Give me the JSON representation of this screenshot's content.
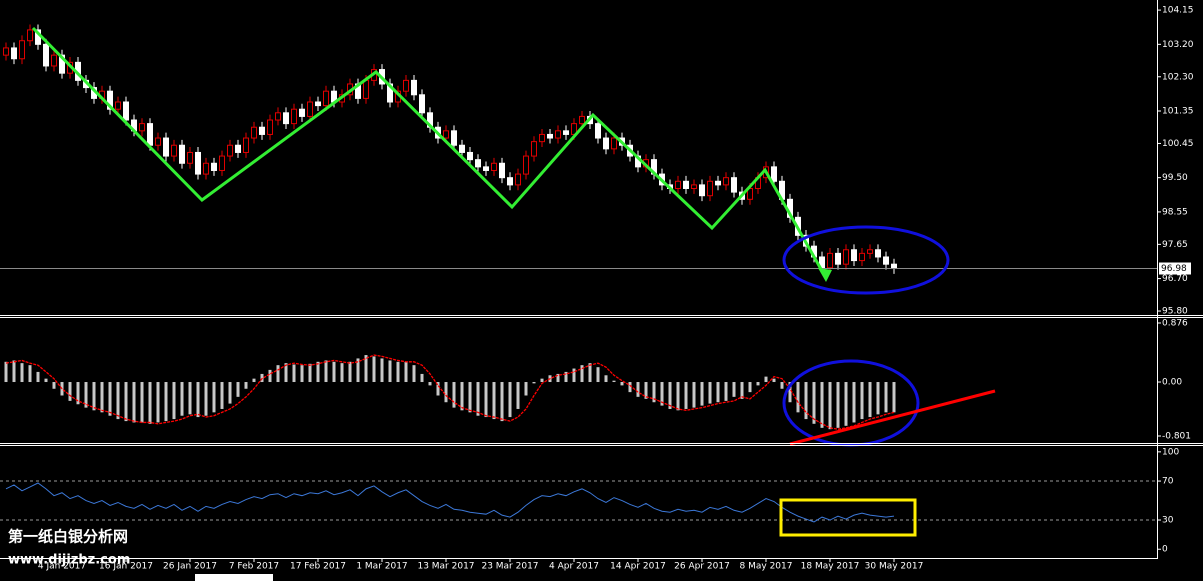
{
  "chart_data": [
    {
      "type": "candlestick",
      "up_color": "#e00000",
      "down_color": "#ffffff",
      "current_line_color": "#8a8a8a",
      "ylim": [
        95.69,
        104.43
      ],
      "yticks": [
        104.15,
        {
          "value": 103.2,
          "label": "103.20"
        },
        {
          "value": 102.3,
          "label": "102.30"
        },
        101.35,
        100.45,
        {
          "value": 99.5,
          "label": "99.50"
        },
        98.55,
        97.65,
        {
          "value": 96.7,
          "label": "96.70"
        },
        {
          "value": 95.8,
          "label": "95.80"
        }
      ],
      "categories": [
        null,
        null,
        null,
        null,
        null,
        null,
        null,
        "4 Jan 2017",
        null,
        null,
        null,
        null,
        null,
        null,
        null,
        "16 Jan 2017",
        null,
        null,
        null,
        null,
        null,
        null,
        null,
        "26 Jan 2017",
        null,
        null,
        null,
        null,
        null,
        null,
        null,
        "7 Feb 2017",
        null,
        null,
        null,
        null,
        null,
        null,
        null,
        "17 Feb 2017",
        null,
        null,
        null,
        null,
        null,
        null,
        null,
        "1 Mar 2017",
        null,
        null,
        null,
        null,
        null,
        null,
        null,
        "13 Mar 2017",
        null,
        null,
        null,
        null,
        null,
        null,
        null,
        "23 Mar 2017",
        null,
        null,
        null,
        null,
        null,
        null,
        null,
        "4 Apr 2017",
        null,
        null,
        null,
        null,
        null,
        null,
        null,
        "14 Apr 2017",
        null,
        null,
        null,
        null,
        null,
        null,
        null,
        "26 Apr 2017",
        null,
        null,
        null,
        null,
        null,
        null,
        null,
        "8 May 2017",
        null,
        null,
        null,
        null,
        null,
        null,
        null,
        "18 May 2017",
        null,
        null,
        null,
        null,
        null,
        null,
        null,
        "30 May 2017"
      ],
      "ohlc": [
        [
          102.9,
          103.25,
          102.75,
          103.1
        ],
        [
          103.1,
          103.25,
          102.65,
          102.8
        ],
        [
          102.8,
          103.45,
          102.65,
          103.3
        ],
        [
          103.3,
          103.75,
          103.15,
          103.6
        ],
        [
          103.6,
          103.75,
          103.05,
          103.2
        ],
        [
          103.2,
          103.35,
          102.45,
          102.6
        ],
        [
          102.6,
          103.05,
          102.45,
          102.9
        ],
        [
          102.9,
          103.05,
          102.25,
          102.4
        ],
        [
          102.4,
          102.85,
          102.25,
          102.7
        ],
        [
          102.7,
          102.85,
          102.05,
          102.2
        ],
        [
          102.2,
          102.35,
          101.85,
          102
        ],
        [
          102,
          102.15,
          101.55,
          101.7
        ],
        [
          101.7,
          102.05,
          101.55,
          101.9
        ],
        [
          101.9,
          102.05,
          101.25,
          101.4
        ],
        [
          101.4,
          101.75,
          101.25,
          101.6
        ],
        [
          101.6,
          101.75,
          100.95,
          101.1
        ],
        [
          101.1,
          101.25,
          100.65,
          100.8
        ],
        [
          100.8,
          101.15,
          100.65,
          101
        ],
        [
          101,
          101.15,
          100.25,
          100.4
        ],
        [
          100.4,
          100.75,
          100.25,
          100.6
        ],
        [
          100.6,
          100.75,
          99.95,
          100.1
        ],
        [
          100.1,
          100.55,
          99.95,
          100.4
        ],
        [
          100.4,
          100.55,
          99.75,
          99.9
        ],
        [
          99.9,
          100.35,
          99.75,
          100.2
        ],
        [
          100.2,
          100.35,
          99.45,
          99.6
        ],
        [
          99.6,
          100.05,
          99.45,
          99.9
        ],
        [
          99.9,
          100.05,
          99.55,
          99.7
        ],
        [
          99.7,
          100.25,
          99.55,
          100.1
        ],
        [
          100.1,
          100.55,
          99.95,
          100.4
        ],
        [
          100.4,
          100.55,
          100.05,
          100.2
        ],
        [
          100.2,
          100.75,
          100.05,
          100.6
        ],
        [
          100.6,
          101.05,
          100.45,
          100.9
        ],
        [
          100.9,
          101.05,
          100.55,
          100.7
        ],
        [
          100.7,
          101.25,
          100.55,
          101.1
        ],
        [
          101.1,
          101.45,
          100.95,
          101.3
        ],
        [
          101.3,
          101.45,
          100.85,
          101
        ],
        [
          101,
          101.55,
          100.85,
          101.4
        ],
        [
          101.4,
          101.55,
          101.05,
          101.2
        ],
        [
          101.2,
          101.75,
          101.05,
          101.6
        ],
        [
          101.6,
          101.75,
          101.35,
          101.5
        ],
        [
          101.5,
          102.05,
          101.35,
          101.9
        ],
        [
          101.9,
          102.05,
          101.45,
          101.6
        ],
        [
          101.6,
          101.95,
          101.45,
          101.8
        ],
        [
          101.8,
          102.25,
          101.65,
          102.1
        ],
        [
          102.1,
          102.25,
          101.55,
          101.7
        ],
        [
          101.7,
          102.35,
          101.55,
          102.2
        ],
        [
          102.2,
          102.65,
          102.05,
          102.5
        ],
        [
          102.5,
          102.65,
          101.95,
          102.1
        ],
        [
          102.1,
          102.25,
          101.45,
          101.6
        ],
        [
          101.6,
          102.05,
          101.45,
          101.9
        ],
        [
          101.9,
          102.35,
          101.75,
          102.2
        ],
        [
          102.2,
          102.35,
          101.65,
          101.8
        ],
        [
          101.8,
          101.95,
          101.15,
          101.3
        ],
        [
          101.3,
          101.45,
          100.75,
          100.9
        ],
        [
          100.9,
          101.05,
          100.45,
          100.6
        ],
        [
          100.6,
          100.95,
          100.45,
          100.8
        ],
        [
          100.8,
          100.95,
          100.25,
          100.4
        ],
        [
          100.4,
          100.55,
          100.05,
          100.2
        ],
        [
          100.2,
          100.35,
          99.85,
          100
        ],
        [
          100,
          100.15,
          99.65,
          99.8
        ],
        [
          99.8,
          99.95,
          99.55,
          99.7
        ],
        [
          99.7,
          100.05,
          99.55,
          99.9
        ],
        [
          99.9,
          100.05,
          99.35,
          99.5
        ],
        [
          99.5,
          99.65,
          99.15,
          99.3
        ],
        [
          99.3,
          99.75,
          99.15,
          99.6
        ],
        [
          99.6,
          100.25,
          99.45,
          100.1
        ],
        [
          100.1,
          100.65,
          99.95,
          100.5
        ],
        [
          100.5,
          100.85,
          100.35,
          100.7
        ],
        [
          100.7,
          100.85,
          100.45,
          100.6
        ],
        [
          100.6,
          100.95,
          100.45,
          100.8
        ],
        [
          100.8,
          100.95,
          100.55,
          100.7
        ],
        [
          100.7,
          101.15,
          100.55,
          101
        ],
        [
          101,
          101.35,
          100.85,
          101.2
        ],
        [
          101.2,
          101.35,
          100.85,
          101
        ],
        [
          101,
          101.15,
          100.45,
          100.6
        ],
        [
          100.6,
          100.75,
          100.15,
          100.3
        ],
        [
          100.3,
          100.75,
          100.15,
          100.6
        ],
        [
          100.6,
          100.75,
          100.25,
          100.4
        ],
        [
          100.4,
          100.55,
          99.95,
          100.1
        ],
        [
          100.1,
          100.25,
          99.65,
          99.8
        ],
        [
          99.8,
          100.15,
          99.65,
          100
        ],
        [
          100,
          100.15,
          99.45,
          99.6
        ],
        [
          99.6,
          99.75,
          99.15,
          99.3
        ],
        [
          99.3,
          99.45,
          99.05,
          99.2
        ],
        [
          99.2,
          99.55,
          99.05,
          99.4
        ],
        [
          99.4,
          99.55,
          99.05,
          99.2
        ],
        [
          99.2,
          99.45,
          99.05,
          99.3
        ],
        [
          99.3,
          99.45,
          98.85,
          99
        ],
        [
          99,
          99.55,
          98.85,
          99.4
        ],
        [
          99.4,
          99.55,
          99.15,
          99.3
        ],
        [
          99.3,
          99.65,
          99.15,
          99.5
        ],
        [
          99.5,
          99.65,
          98.95,
          99.1
        ],
        [
          99.1,
          99.25,
          98.75,
          98.9
        ],
        [
          98.9,
          99.35,
          98.75,
          99.2
        ],
        [
          99.2,
          99.65,
          99.05,
          99.5
        ],
        [
          99.5,
          99.95,
          99.35,
          99.8
        ],
        [
          99.8,
          99.95,
          99.25,
          99.4
        ],
        [
          99.4,
          99.55,
          98.75,
          98.9
        ],
        [
          98.9,
          99.05,
          98.25,
          98.4
        ],
        [
          98.4,
          98.55,
          97.75,
          97.9
        ],
        [
          97.9,
          98.05,
          97.45,
          97.6
        ],
        [
          97.6,
          97.75,
          97.15,
          97.3
        ],
        [
          97.3,
          97.45,
          96.85,
          97
        ],
        [
          97,
          97.55,
          96.85,
          97.4
        ],
        [
          97.4,
          97.55,
          96.95,
          97.1
        ],
        [
          97.1,
          97.65,
          96.95,
          97.5
        ],
        [
          97.5,
          97.65,
          97.05,
          97.2
        ],
        [
          97.2,
          97.55,
          97.05,
          97.4
        ],
        [
          97.4,
          97.65,
          97.25,
          97.5
        ],
        [
          97.5,
          97.65,
          97.15,
          97.3
        ],
        [
          97.3,
          97.45,
          96.95,
          97.1
        ],
        [
          97.1,
          97.25,
          96.83,
          96.98
        ]
      ]
    },
    {
      "type": "macd",
      "color": "#c8c8c8",
      "signal_color": "#ff0000",
      "ylim": [
        -0.905,
        0.95
      ],
      "yticks": [
        0.876,
        {
          "value": 0,
          "label": "0.00"
        },
        -0.801
      ],
      "values": [
        0.3,
        0.32,
        0.28,
        0.25,
        0.15,
        0.05,
        -0.1,
        -0.2,
        -0.28,
        -0.33,
        -0.38,
        -0.42,
        -0.45,
        -0.5,
        -0.55,
        -0.58,
        -0.6,
        -0.6,
        -0.62,
        -0.6,
        -0.58,
        -0.55,
        -0.5,
        -0.48,
        -0.52,
        -0.5,
        -0.45,
        -0.4,
        -0.32,
        -0.22,
        -0.1,
        0.05,
        0.12,
        0.18,
        0.25,
        0.28,
        0.26,
        0.25,
        0.27,
        0.3,
        0.32,
        0.3,
        0.28,
        0.3,
        0.35,
        0.4,
        0.38,
        0.35,
        0.32,
        0.3,
        0.3,
        0.25,
        0.12,
        -0.05,
        -0.2,
        -0.3,
        -0.38,
        -0.42,
        -0.45,
        -0.5,
        -0.52,
        -0.55,
        -0.58,
        -0.52,
        -0.4,
        -0.2,
        -0.02,
        0.05,
        0.1,
        0.12,
        0.15,
        0.2,
        0.25,
        0.28,
        0.22,
        0.1,
        0.02,
        -0.05,
        -0.15,
        -0.22,
        -0.25,
        -0.3,
        -0.35,
        -0.4,
        -0.42,
        -0.4,
        -0.38,
        -0.35,
        -0.32,
        -0.3,
        -0.28,
        -0.22,
        -0.25,
        -0.15,
        -0.05,
        0.08,
        0.05,
        -0.1,
        -0.3,
        -0.45,
        -0.55,
        -0.62,
        -0.68,
        -0.7,
        -0.68,
        -0.65,
        -0.6,
        -0.55,
        -0.52,
        -0.48,
        -0.45,
        -0.45
      ],
      "signal": [
        0.28,
        0.3,
        0.32,
        0.28,
        0.25,
        0.15,
        0.05,
        -0.1,
        -0.2,
        -0.28,
        -0.33,
        -0.38,
        -0.42,
        -0.45,
        -0.5,
        -0.55,
        -0.58,
        -0.6,
        -0.6,
        -0.62,
        -0.6,
        -0.58,
        -0.55,
        -0.5,
        -0.48,
        -0.52,
        -0.5,
        -0.45,
        -0.4,
        -0.32,
        -0.22,
        -0.1,
        0.05,
        0.12,
        0.18,
        0.25,
        0.28,
        0.26,
        0.25,
        0.27,
        0.3,
        0.32,
        0.3,
        0.28,
        0.3,
        0.35,
        0.4,
        0.38,
        0.35,
        0.32,
        0.3,
        0.3,
        0.25,
        0.12,
        -0.05,
        -0.2,
        -0.3,
        -0.38,
        -0.42,
        -0.45,
        -0.5,
        -0.52,
        -0.55,
        -0.58,
        -0.52,
        -0.4,
        -0.2,
        -0.02,
        0.05,
        0.1,
        0.12,
        0.15,
        0.2,
        0.25,
        0.28,
        0.22,
        0.1,
        0.02,
        -0.05,
        -0.15,
        -0.22,
        -0.25,
        -0.3,
        -0.35,
        -0.4,
        -0.42,
        -0.4,
        -0.38,
        -0.35,
        -0.32,
        -0.3,
        -0.28,
        -0.22,
        -0.25,
        -0.15,
        -0.05,
        0.08,
        0.05,
        -0.1,
        -0.3,
        -0.45,
        -0.55,
        -0.62,
        -0.68,
        -0.7,
        -0.68,
        -0.65,
        -0.6,
        -0.55,
        -0.52,
        -0.48,
        -0.45
      ]
    },
    {
      "type": "line",
      "color": "#3c78d8",
      "level_color": "#9a9a9a",
      "ylim": [
        -9,
        106
      ],
      "yticks": [
        100,
        70,
        30,
        0
      ],
      "levels": [
        70,
        30
      ],
      "values": [
        62,
        66,
        60,
        64,
        68,
        62,
        55,
        58,
        52,
        55,
        50,
        47,
        50,
        45,
        48,
        44,
        42,
        46,
        41,
        45,
        42,
        46,
        40,
        44,
        39,
        44,
        42,
        46,
        49,
        47,
        51,
        54,
        52,
        56,
        57,
        53,
        57,
        55,
        58,
        57,
        60,
        56,
        58,
        61,
        55,
        62,
        65,
        59,
        54,
        58,
        61,
        55,
        49,
        45,
        42,
        46,
        41,
        40,
        38,
        37,
        36,
        40,
        35,
        33,
        38,
        45,
        51,
        55,
        54,
        57,
        55,
        59,
        62,
        58,
        52,
        48,
        53,
        50,
        46,
        43,
        47,
        42,
        39,
        38,
        41,
        39,
        40,
        38,
        43,
        41,
        44,
        40,
        38,
        42,
        47,
        52,
        49,
        43,
        38,
        34,
        31,
        28,
        33,
        30,
        34,
        31,
        35,
        37,
        35,
        34,
        33,
        34
      ]
    }
  ],
  "watermark": {
    "title": "第一纸白银分析网",
    "url": "www.dijizbz.com"
  }
}
